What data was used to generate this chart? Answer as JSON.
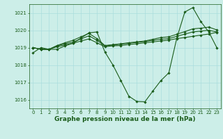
{
  "background_color": "#cceee8",
  "grid_color": "#aadddd",
  "line_color": "#1a5c1a",
  "line_width": 0.8,
  "marker": "D",
  "marker_size": 1.8,
  "xlabel": "Graphe pression niveau de la mer (hPa)",
  "xlabel_fontsize": 6.5,
  "xlabel_color": "#1a5c1a",
  "tick_fontsize": 5.0,
  "tick_color": "#1a5c1a",
  "xlim": [
    -0.5,
    23.5
  ],
  "ylim": [
    1015.5,
    1021.5
  ],
  "yticks": [
    1016,
    1017,
    1018,
    1019,
    1020,
    1021
  ],
  "xticks": [
    0,
    1,
    2,
    3,
    4,
    5,
    6,
    7,
    8,
    9,
    10,
    11,
    12,
    13,
    14,
    15,
    16,
    17,
    18,
    19,
    20,
    21,
    22,
    23
  ],
  "series": [
    [
      1018.7,
      1019.0,
      1018.9,
      1018.9,
      1019.1,
      1019.25,
      1019.55,
      1019.85,
      1019.9,
      1018.75,
      1018.0,
      1017.1,
      1016.2,
      1015.9,
      1015.88,
      1016.5,
      1017.1,
      1017.55,
      1019.55,
      1021.05,
      1021.3,
      1020.5,
      1019.9,
      1019.0
    ],
    [
      1019.0,
      1018.9,
      1018.9,
      1019.05,
      1019.15,
      1019.25,
      1019.38,
      1019.5,
      1019.28,
      1019.05,
      1019.1,
      1019.12,
      1019.18,
      1019.22,
      1019.28,
      1019.33,
      1019.38,
      1019.43,
      1019.52,
      1019.58,
      1019.65,
      1019.72,
      1019.78,
      1019.88
    ],
    [
      1019.0,
      1018.9,
      1018.9,
      1019.1,
      1019.22,
      1019.32,
      1019.5,
      1019.68,
      1019.42,
      1019.1,
      1019.15,
      1019.2,
      1019.25,
      1019.3,
      1019.35,
      1019.42,
      1019.48,
      1019.52,
      1019.65,
      1019.78,
      1019.9,
      1019.95,
      1020.0,
      1019.9
    ],
    [
      1019.0,
      1018.9,
      1018.9,
      1019.12,
      1019.28,
      1019.42,
      1019.62,
      1019.82,
      1019.52,
      1019.12,
      1019.17,
      1019.22,
      1019.28,
      1019.33,
      1019.38,
      1019.48,
      1019.58,
      1019.62,
      1019.77,
      1019.92,
      1020.08,
      1020.12,
      1020.18,
      1020.02
    ]
  ]
}
